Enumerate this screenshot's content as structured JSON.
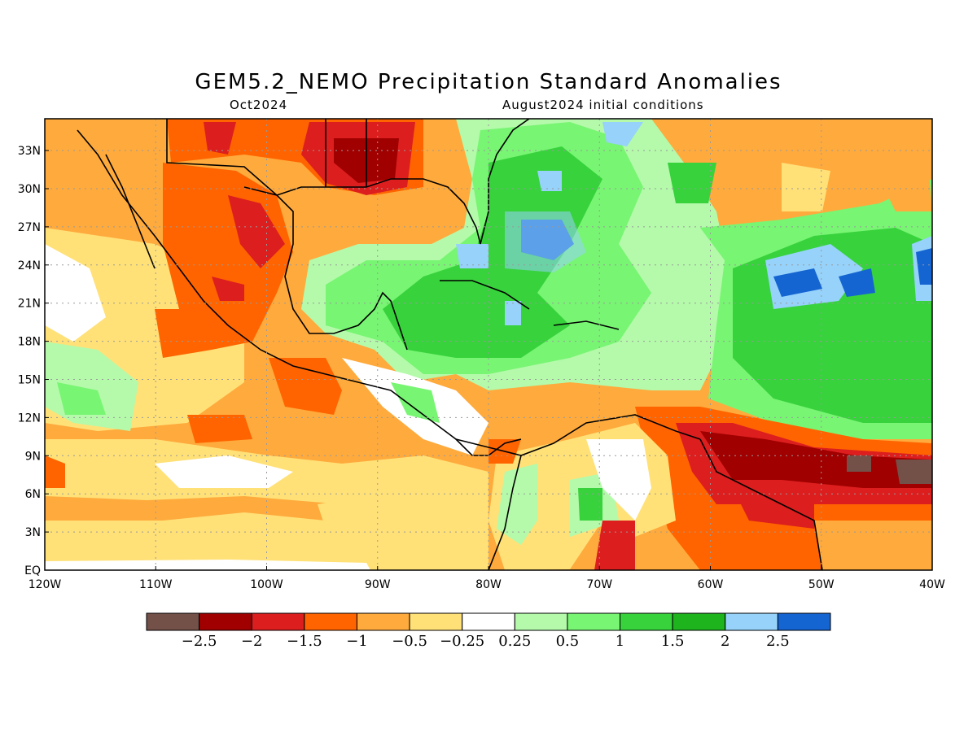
{
  "title": "GEM5.2_NEMO Precipitation Standard Anomalies",
  "subtitle_left": "Oct2024",
  "subtitle_right": "August2024 initial conditions",
  "map": {
    "lon_range": [
      -120,
      -40
    ],
    "lat_range": [
      0,
      35
    ],
    "lat_ticks": [
      "33N",
      "30N",
      "27N",
      "24N",
      "21N",
      "18N",
      "15N",
      "12N",
      "9N",
      "6N",
      "3N",
      "EQ"
    ],
    "lon_ticks": [
      "120W",
      "110W",
      "100W",
      "90W",
      "80W",
      "70W",
      "60W",
      "50W",
      "40W"
    ],
    "grid": true,
    "colorbar": {
      "colors": [
        "#735048",
        "#a00000",
        "#dc1e1e",
        "#ff6400",
        "#ffaa3c",
        "#ffe178",
        "#ffffff",
        "#b4faaa",
        "#78f573",
        "#37d23c",
        "#1eb41e",
        "#96d2fa",
        "#1464d2"
      ],
      "labels": [
        "−2.5",
        "−2",
        "−1.5",
        "−1",
        "−0.5",
        "−0.25",
        "0.25",
        "0.5",
        "1",
        "1.5",
        "2",
        "2.5"
      ]
    }
  }
}
